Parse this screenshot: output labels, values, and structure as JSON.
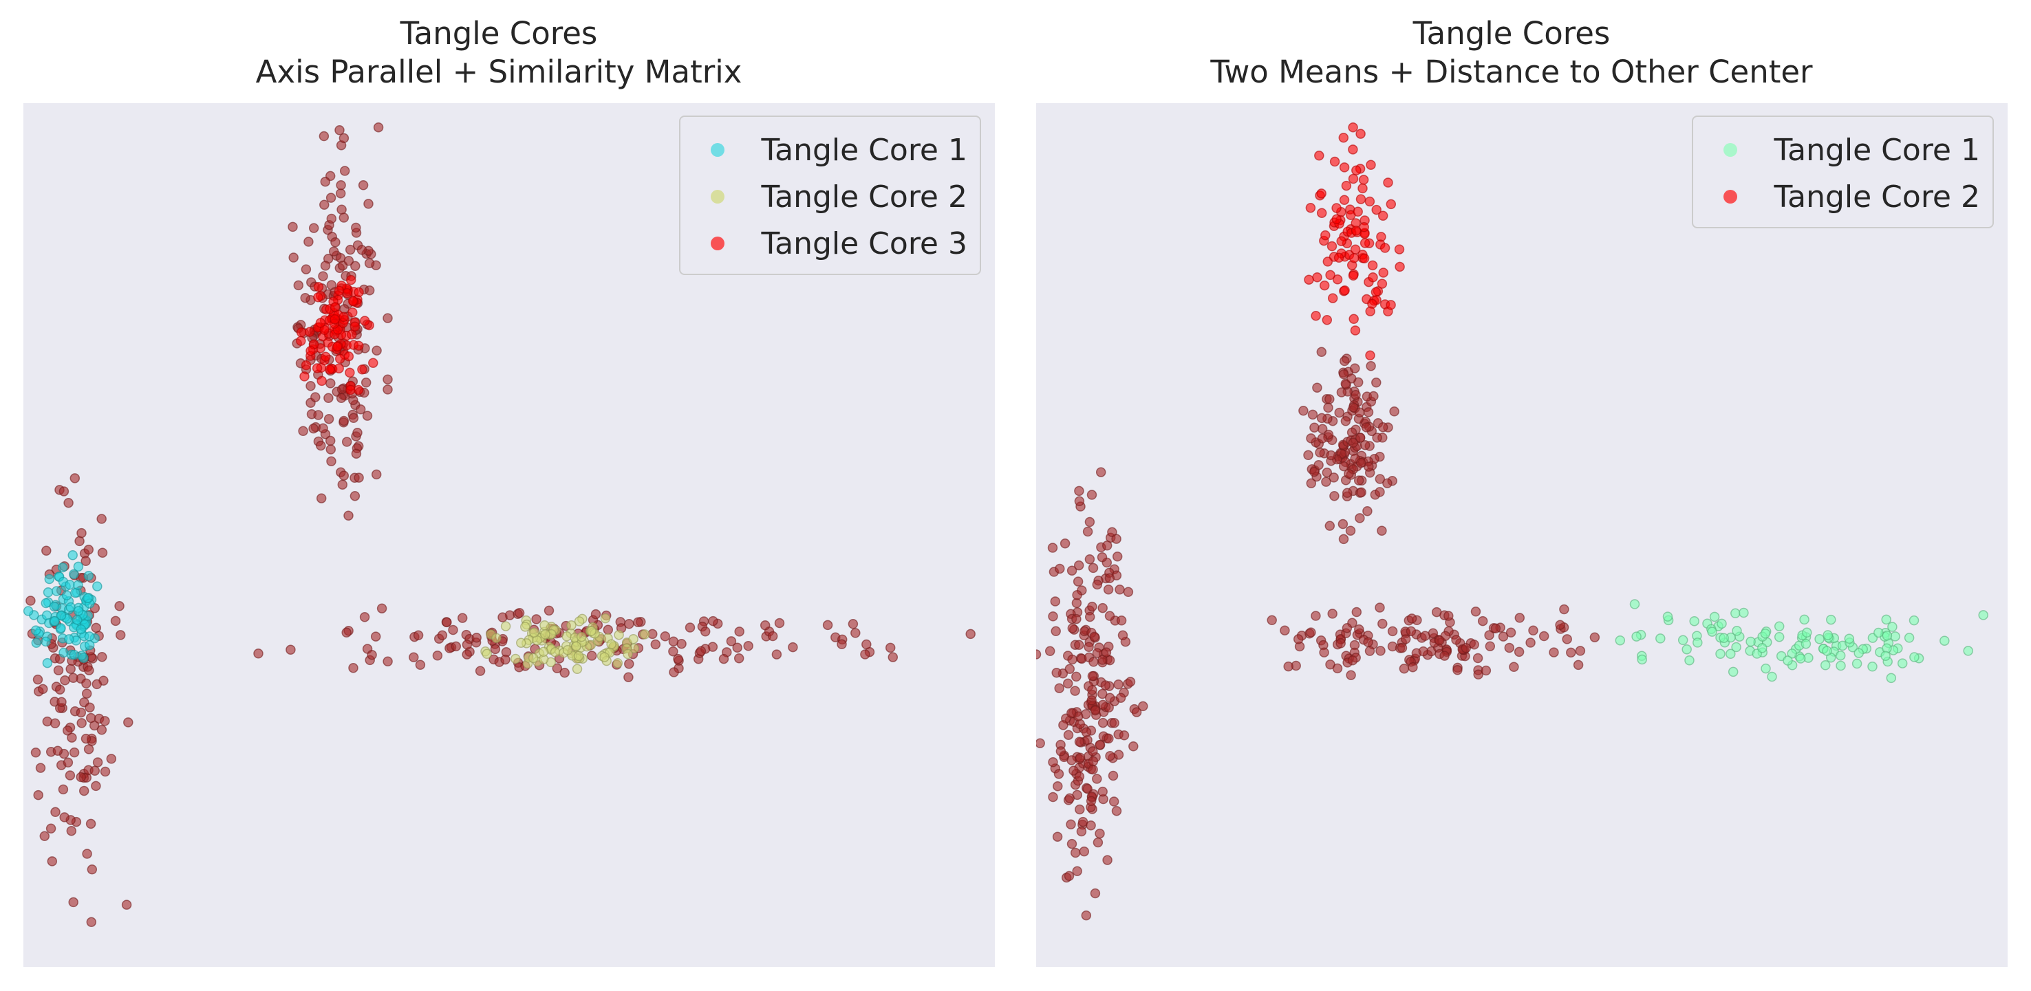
{
  "chart_data": [
    {
      "type": "scatter",
      "title": "Tangle Cores",
      "subtitle": "Axis Parallel + Similarity Matrix",
      "xlim": [
        -1,
        19
      ],
      "ylim": [
        -7.5,
        17.5
      ],
      "grid": false,
      "legend_position": "top-right",
      "legend": [
        "Tangle Core 1",
        "Tangle Core 2",
        "Tangle Core 3"
      ],
      "background_color": "#a52a2a",
      "series": [
        {
          "name": "Tangle Core 1",
          "color": "#22d3dc",
          "x_range": [
            -0.9,
            0.8
          ],
          "y_range": [
            0.8,
            4.5
          ],
          "n": 90
        },
        {
          "name": "Tangle Core 2",
          "color": "#d0d97a",
          "x_range": [
            8.5,
            12
          ],
          "y_range": [
            0.9,
            2.7
          ],
          "n": 95
        },
        {
          "name": "Tangle Core 3",
          "color": "#ff0000",
          "x_range": [
            4.6,
            6.2
          ],
          "y_range": [
            9.2,
            12.7
          ],
          "n": 90
        }
      ],
      "background_clusters": [
        {
          "x_range": [
            -1,
            1.2
          ],
          "y_range": [
            -6.2,
            7
          ],
          "n": 130
        },
        {
          "x_range": [
            3.2,
            18.5
          ],
          "y_range": [
            0.8,
            2.9
          ],
          "n": 150
        },
        {
          "x_range": [
            4.4,
            6.5
          ],
          "y_range": [
            4.8,
            16.8
          ],
          "n": 170
        }
      ]
    },
    {
      "type": "scatter",
      "title": "Tangle Cores",
      "subtitle": "Two Means + Distance to Other Center",
      "xlim": [
        -1,
        19
      ],
      "ylim": [
        -7.5,
        17.5
      ],
      "grid": false,
      "legend_position": "top-right",
      "legend": [
        "Tangle Core 1",
        "Tangle Core 2"
      ],
      "background_color": "#a52a2a",
      "series": [
        {
          "name": "Tangle Core 1",
          "color": "#7dffb0",
          "x_range": [
            10.5,
            18.5
          ],
          "y_range": [
            0.8,
            3
          ],
          "n": 110
        },
        {
          "name": "Tangle Core 2",
          "color": "#ff0000",
          "x_range": [
            4.6,
            6.5
          ],
          "y_range": [
            10.2,
            16.8
          ],
          "n": 100
        }
      ],
      "background_clusters": [
        {
          "x_range": [
            -1,
            1.2
          ],
          "y_range": [
            -6.2,
            7
          ],
          "n": 220
        },
        {
          "x_range": [
            3.2,
            10.5
          ],
          "y_range": [
            0.8,
            2.9
          ],
          "n": 130
        },
        {
          "x_range": [
            4.4,
            6.5
          ],
          "y_range": [
            4.8,
            10.5
          ],
          "n": 140
        }
      ]
    }
  ]
}
